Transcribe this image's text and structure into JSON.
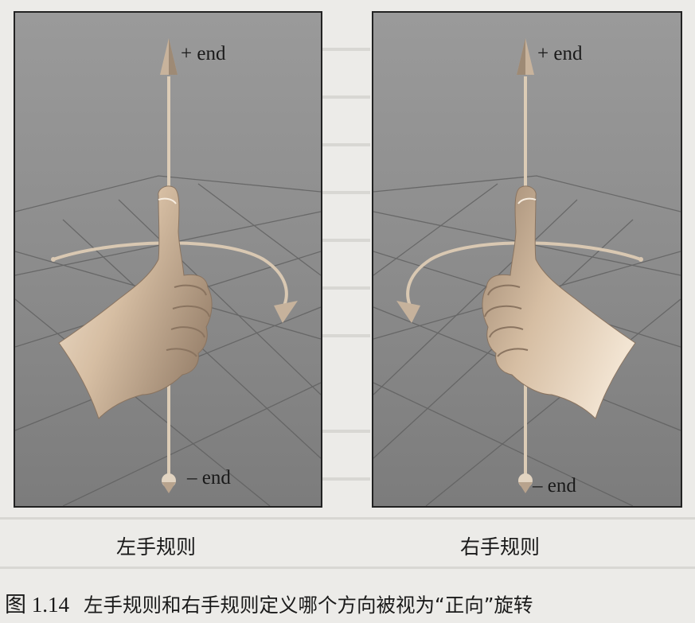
{
  "figure": {
    "number": "图 1.14",
    "caption": "左手规则和右手规则定义哪个方向被视为“正向”旋转"
  },
  "panels": [
    {
      "rule_label": "左手规则",
      "plus_end_label": "+ end",
      "minus_end_label": "– end"
    },
    {
      "rule_label": "右手规则",
      "plus_end_label": "+ end",
      "minus_end_label": "– end"
    }
  ],
  "colors": {
    "background": "#8c8c8c",
    "skin": "#e3cdb5",
    "axis": "#d9c8b2",
    "grid": "#5f5f5f"
  }
}
